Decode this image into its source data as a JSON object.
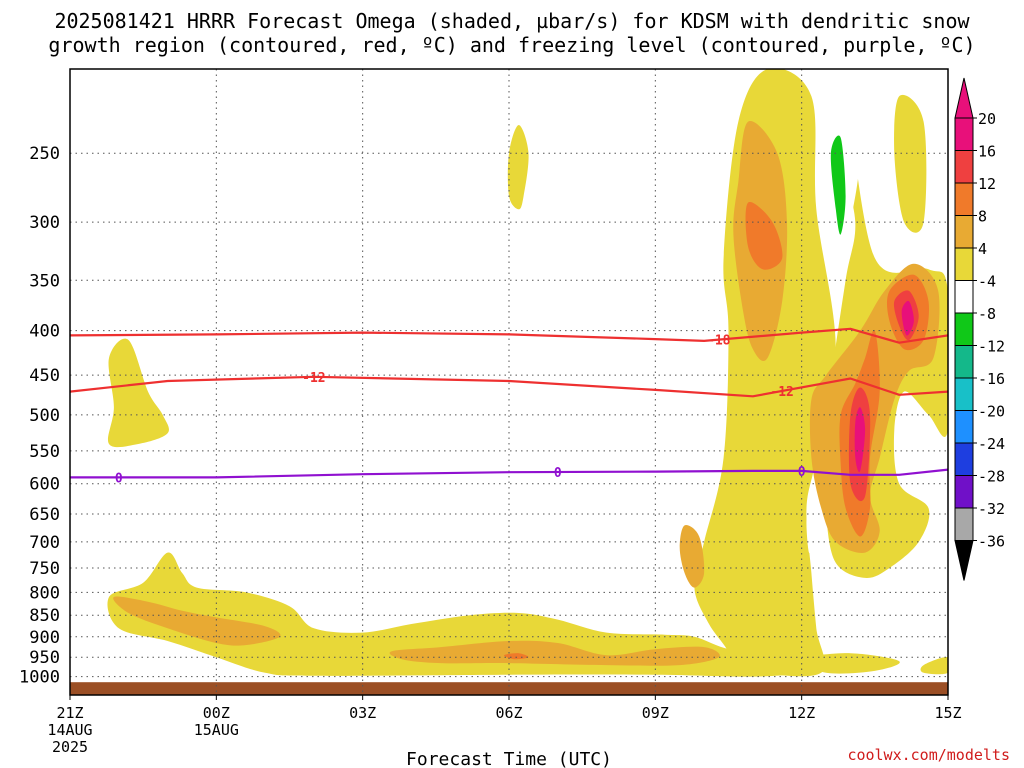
{
  "title_line1": "2025081421 HRRR Forecast Omega (shaded, µbar/s) for KDSM with dendritic snow",
  "title_line2": "growth region (contoured, red, ºC) and freezing level (contoured, purple, ºC)",
  "credit": "coolwx.com/modelts",
  "chart_data": {
    "type": "heatmap",
    "xlabel": "Forecast Time (UTC)",
    "xlim": [
      0,
      18
    ],
    "x_units": "hours after 21Z 14AUG 2025",
    "x_ticks": [
      {
        "x": 0,
        "lines": [
          "21Z",
          "14AUG",
          "2025"
        ]
      },
      {
        "x": 3,
        "lines": [
          "00Z",
          "15AUG"
        ]
      },
      {
        "x": 6,
        "lines": [
          "03Z"
        ]
      },
      {
        "x": 9,
        "lines": [
          "06Z"
        ]
      },
      {
        "x": 12,
        "lines": [
          "09Z"
        ]
      },
      {
        "x": 15,
        "lines": [
          "12Z"
        ]
      },
      {
        "x": 18,
        "lines": [
          "15Z"
        ]
      }
    ],
    "y_scale": "log-pressure",
    "ylim_hPa": [
      1050,
      200
    ],
    "y_ticks_hPa": [
      250,
      300,
      350,
      400,
      450,
      500,
      550,
      600,
      650,
      700,
      750,
      800,
      850,
      900,
      950,
      1000
    ],
    "ground_hPa": 1015,
    "colorbar": {
      "levels": [
        20,
        16,
        12,
        8,
        4,
        -4,
        -8,
        -12,
        -16,
        -20,
        -24,
        -28,
        -32,
        -36
      ],
      "colors": [
        "#e8107a",
        "#ef4040",
        "#f07a2a",
        "#e8aa33",
        "#e8d838",
        "#ffffff",
        "#10c818",
        "#14b88a",
        "#18c0c8",
        "#1e90ff",
        "#1e3ee0",
        "#7010c8",
        "#a010c0",
        "#a8a8a8"
      ],
      "top_arrow_color": "#e8107a",
      "bottom_arrow_color": "#000000"
    },
    "temperature_contours": [
      {
        "label": "-18",
        "color": "#ee3030",
        "points": [
          [
            0,
            405
          ],
          [
            3,
            404
          ],
          [
            6,
            402
          ],
          [
            9,
            404
          ],
          [
            12,
            409
          ],
          [
            13,
            411
          ],
          [
            15,
            402
          ],
          [
            16,
            398
          ],
          [
            17,
            413
          ],
          [
            18,
            405
          ]
        ],
        "label_at": [
          13.3
        ]
      },
      {
        "label": "-12",
        "color": "#ee3030",
        "points": [
          [
            0,
            470
          ],
          [
            2,
            457
          ],
          [
            5,
            452
          ],
          [
            9,
            457
          ],
          [
            12,
            468
          ],
          [
            14,
            476
          ],
          [
            16,
            454
          ],
          [
            17,
            474
          ],
          [
            18,
            470
          ]
        ],
        "label_at": [
          5.0,
          14.6
        ]
      },
      {
        "label": "0",
        "color": "#9010d0",
        "points": [
          [
            0,
            590
          ],
          [
            3,
            590
          ],
          [
            6,
            585
          ],
          [
            9,
            582
          ],
          [
            12,
            581
          ],
          [
            14,
            580
          ],
          [
            15,
            580
          ],
          [
            16,
            586
          ],
          [
            17,
            586
          ],
          [
            18,
            578
          ]
        ],
        "label_at": [
          1.0,
          10.0,
          15.0
        ]
      }
    ],
    "omega_regions": [
      {
        "level": 4,
        "points": [
          [
            14.3,
            200
          ],
          [
            15.2,
            215
          ],
          [
            15.3,
            290
          ],
          [
            15.7,
            420
          ],
          [
            15.3,
            560
          ],
          [
            15.1,
            640
          ],
          [
            15.2,
            760
          ],
          [
            15.3,
            880
          ],
          [
            15.4,
            990
          ],
          [
            14.0,
            990
          ],
          [
            13.3,
            975
          ],
          [
            13.5,
            940
          ],
          [
            13.1,
            870
          ],
          [
            12.8,
            790
          ],
          [
            13.0,
            700
          ],
          [
            13.4,
            560
          ],
          [
            13.5,
            400
          ],
          [
            13.4,
            330
          ],
          [
            13.7,
            230
          ]
        ]
      },
      {
        "level": 4,
        "points": [
          [
            15.9,
            215
          ],
          [
            16.5,
            330
          ],
          [
            17.6,
            340
          ],
          [
            18,
            360
          ],
          [
            18,
            520
          ],
          [
            17.6,
            500
          ],
          [
            17.1,
            470
          ],
          [
            16.9,
            520
          ],
          [
            17.0,
            600
          ],
          [
            17.6,
            640
          ],
          [
            17.4,
            700
          ],
          [
            16.8,
            750
          ],
          [
            16.3,
            770
          ],
          [
            15.7,
            740
          ],
          [
            15.5,
            650
          ],
          [
            15.5,
            560
          ],
          [
            15.6,
            460
          ],
          [
            15.9,
            350
          ],
          [
            16.1,
            300
          ],
          [
            15.8,
            250
          ]
        ]
      },
      {
        "level": 4,
        "points": [
          [
            17.0,
            215
          ],
          [
            17.5,
            230
          ],
          [
            17.5,
            300
          ],
          [
            17.1,
            300
          ],
          [
            16.9,
            250
          ]
        ]
      },
      {
        "level": 4,
        "points": [
          [
            0.8,
            810
          ],
          [
            1.5,
            780
          ],
          [
            2.0,
            720
          ],
          [
            2.3,
            760
          ],
          [
            2.6,
            790
          ],
          [
            3.6,
            800
          ],
          [
            4.5,
            830
          ],
          [
            5.0,
            880
          ],
          [
            6.0,
            890
          ],
          [
            7.0,
            870
          ],
          [
            8.2,
            850
          ],
          [
            9.2,
            845
          ],
          [
            10.0,
            860
          ],
          [
            11.0,
            890
          ],
          [
            12.2,
            895
          ],
          [
            12.8,
            900
          ],
          [
            13.5,
            930
          ],
          [
            14.6,
            955
          ],
          [
            15.0,
            970
          ],
          [
            15.0,
            990
          ],
          [
            14.0,
            1000
          ],
          [
            12.0,
            995
          ],
          [
            9.0,
            995
          ],
          [
            5.0,
            998
          ],
          [
            4.0,
            990
          ],
          [
            3.0,
            950
          ],
          [
            2.0,
            910
          ],
          [
            1.0,
            880
          ]
        ]
      },
      {
        "level": 4,
        "points": [
          [
            15.0,
            955
          ],
          [
            16.0,
            940
          ],
          [
            17.0,
            960
          ],
          [
            16.5,
            985
          ],
          [
            15.5,
            990
          ]
        ]
      },
      {
        "level": 4,
        "points": [
          [
            17.5,
            970
          ],
          [
            18,
            950
          ],
          [
            18,
            990
          ],
          [
            17.5,
            990
          ]
        ]
      },
      {
        "level": 4,
        "points": [
          [
            0.8,
            430
          ],
          [
            1.2,
            410
          ],
          [
            1.6,
            470
          ],
          [
            1.9,
            500
          ],
          [
            2.0,
            525
          ],
          [
            1.4,
            540
          ],
          [
            0.8,
            540
          ],
          [
            0.9,
            490
          ]
        ]
      },
      {
        "level": 4,
        "points": [
          [
            9.0,
            250
          ],
          [
            9.2,
            232
          ],
          [
            9.4,
            250
          ],
          [
            9.3,
            280
          ],
          [
            9.2,
            290
          ],
          [
            9.0,
            280
          ]
        ]
      },
      {
        "level": 8,
        "points": [
          [
            13.9,
            230
          ],
          [
            14.5,
            250
          ],
          [
            14.7,
            300
          ],
          [
            14.6,
            370
          ],
          [
            14.3,
            430
          ],
          [
            14.0,
            420
          ],
          [
            13.8,
            380
          ],
          [
            13.6,
            310
          ],
          [
            13.7,
            270
          ]
        ]
      },
      {
        "level": 8,
        "points": [
          [
            15.5,
            450
          ],
          [
            16.2,
            400
          ],
          [
            16.7,
            360
          ],
          [
            17.3,
            335
          ],
          [
            17.8,
            360
          ],
          [
            17.7,
            430
          ],
          [
            17.2,
            445
          ],
          [
            16.9,
            480
          ],
          [
            16.6,
            560
          ],
          [
            16.4,
            620
          ],
          [
            16.6,
            680
          ],
          [
            16.3,
            720
          ],
          [
            15.7,
            700
          ],
          [
            15.4,
            640
          ],
          [
            15.2,
            560
          ],
          [
            15.2,
            480
          ]
        ]
      },
      {
        "level": 8,
        "points": [
          [
            0.9,
            810
          ],
          [
            1.6,
            820
          ],
          [
            2.3,
            840
          ],
          [
            3.0,
            855
          ],
          [
            4.0,
            875
          ],
          [
            4.3,
            900
          ],
          [
            3.6,
            920
          ],
          [
            3.0,
            915
          ],
          [
            2.0,
            880
          ],
          [
            1.2,
            845
          ]
        ]
      },
      {
        "level": 8,
        "points": [
          [
            6.6,
            935
          ],
          [
            7.6,
            925
          ],
          [
            9.0,
            910
          ],
          [
            10.0,
            915
          ],
          [
            11.0,
            945
          ],
          [
            12.0,
            930
          ],
          [
            13.0,
            925
          ],
          [
            13.3,
            950
          ],
          [
            12.5,
            970
          ],
          [
            11.0,
            970
          ],
          [
            9.0,
            965
          ],
          [
            7.6,
            965
          ],
          [
            6.8,
            955
          ]
        ]
      },
      {
        "level": 8,
        "points": [
          [
            12.6,
            670
          ],
          [
            12.9,
            690
          ],
          [
            13.0,
            760
          ],
          [
            12.8,
            790
          ],
          [
            12.6,
            760
          ],
          [
            12.5,
            710
          ]
        ]
      },
      {
        "level": 12,
        "points": [
          [
            13.9,
            285
          ],
          [
            14.4,
            300
          ],
          [
            14.6,
            330
          ],
          [
            14.2,
            340
          ],
          [
            13.9,
            320
          ]
        ]
      },
      {
        "level": 12,
        "points": [
          [
            15.8,
            500
          ],
          [
            16.1,
            460
          ],
          [
            16.3,
            430
          ],
          [
            16.5,
            400
          ],
          [
            16.6,
            470
          ],
          [
            16.4,
            560
          ],
          [
            16.4,
            640
          ],
          [
            16.2,
            690
          ],
          [
            15.9,
            640
          ],
          [
            15.8,
            570
          ]
        ]
      },
      {
        "level": 12,
        "points": [
          [
            16.8,
            360
          ],
          [
            17.3,
            345
          ],
          [
            17.6,
            370
          ],
          [
            17.5,
            410
          ],
          [
            17.1,
            420
          ],
          [
            16.8,
            390
          ]
        ]
      },
      {
        "level": 12,
        "points": [
          [
            8.9,
            945
          ],
          [
            9.2,
            940
          ],
          [
            9.4,
            950
          ],
          [
            9.1,
            955
          ]
        ]
      },
      {
        "level": 16,
        "points": [
          [
            16.0,
            500
          ],
          [
            16.2,
            465
          ],
          [
            16.4,
            500
          ],
          [
            16.3,
            620
          ],
          [
            16.0,
            600
          ]
        ]
      },
      {
        "level": 16,
        "points": [
          [
            16.9,
            370
          ],
          [
            17.2,
            360
          ],
          [
            17.4,
            385
          ],
          [
            17.2,
            410
          ],
          [
            17.0,
            395
          ]
        ]
      },
      {
        "level": 20,
        "points": [
          [
            16.1,
            510
          ],
          [
            16.2,
            490
          ],
          [
            16.3,
            520
          ],
          [
            16.2,
            580
          ],
          [
            16.1,
            560
          ]
        ]
      },
      {
        "level": 20,
        "points": [
          [
            17.05,
            380
          ],
          [
            17.2,
            370
          ],
          [
            17.3,
            390
          ],
          [
            17.15,
            405
          ]
        ]
      },
      {
        "level": -4,
        "points": [
          [
            15.4,
            200
          ],
          [
            16.1,
            200
          ],
          [
            16.2,
            250
          ],
          [
            16.0,
            300
          ],
          [
            15.8,
            330
          ],
          [
            15.6,
            300
          ],
          [
            15.5,
            250
          ]
        ]
      },
      {
        "level": -4,
        "points": [
          [
            15.1,
            660
          ],
          [
            15.2,
            640
          ],
          [
            15.25,
            690
          ],
          [
            15.15,
            720
          ]
        ]
      },
      {
        "level": -4,
        "points": [
          [
            16.5,
            810
          ],
          [
            17.0,
            760
          ],
          [
            17.3,
            780
          ],
          [
            17.2,
            830
          ],
          [
            16.9,
            830
          ]
        ]
      },
      {
        "level": -8,
        "points": [
          [
            15.6,
            250
          ],
          [
            15.8,
            240
          ],
          [
            15.9,
            280
          ],
          [
            15.8,
            310
          ],
          [
            15.7,
            290
          ]
        ]
      }
    ]
  }
}
